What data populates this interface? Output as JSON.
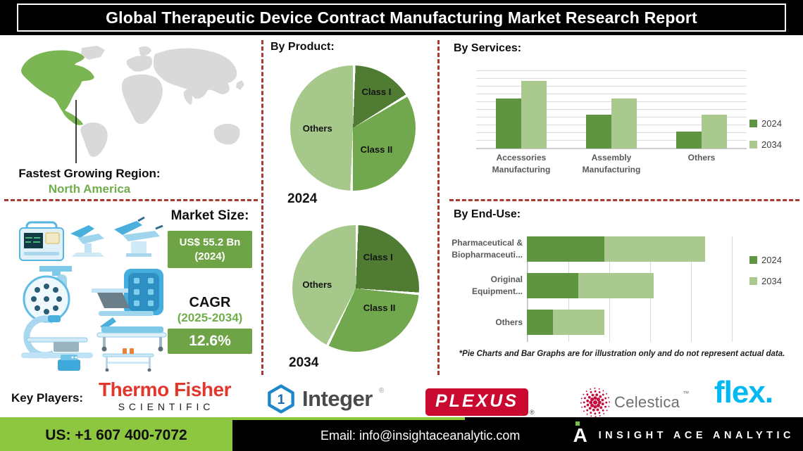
{
  "title": "Global Therapeutic Device Contract Manufacturing Market Research Report",
  "region": {
    "heading": "Fastest Growing Region:",
    "value": "North America"
  },
  "market": {
    "heading": "Market Size:",
    "size_value": "US$ 55.2 Bn",
    "size_year": "(2024)",
    "cagr_label": "CAGR",
    "cagr_period": "(2025-2034)",
    "cagr_value": "12.6%"
  },
  "sections": {
    "by_product": "By Product:",
    "by_services": "By Services:",
    "by_end_use": "By End-Use:"
  },
  "chart_data": [
    {
      "type": "pie",
      "name": "by-product-2024",
      "year": "2024",
      "labels": [
        "Class I",
        "Class II",
        "Others"
      ],
      "values": [
        16,
        34,
        50
      ],
      "colors": [
        "#4f7b33",
        "#71a84e",
        "#a6c98b"
      ],
      "note": "illustrative only"
    },
    {
      "type": "pie",
      "name": "by-product-2034",
      "year": "2034",
      "labels": [
        "Class I",
        "Class II",
        "Others"
      ],
      "values": [
        26,
        31,
        43
      ],
      "colors": [
        "#4f7b33",
        "#71a84e",
        "#a6c98b"
      ],
      "note": "illustrative only"
    },
    {
      "type": "bar",
      "name": "by-services",
      "categories": [
        "Accessories Manufacturing",
        "Assembly Manufacturing",
        "Others"
      ],
      "series": [
        {
          "name": "2024",
          "color": "#5f9441",
          "values": [
            63,
            43,
            21
          ]
        },
        {
          "name": "2034",
          "color": "#a9c98e",
          "values": [
            86,
            63,
            43
          ]
        }
      ],
      "ylim": [
        0,
        100
      ],
      "grid": true,
      "legend_position": "right",
      "note": "illustrative only"
    },
    {
      "type": "bar-horizontal-stacked",
      "name": "by-end-use",
      "categories": [
        "Pharmaceutical & Biopharmaceuti...",
        "Original Equipment...",
        "Others"
      ],
      "series": [
        {
          "name": "2024",
          "color": "#5f9441",
          "values": [
            36,
            24,
            12
          ]
        },
        {
          "name": "2034",
          "color": "#a9c98e",
          "values": [
            47,
            35,
            24
          ]
        }
      ],
      "xlim": [
        0,
        100
      ],
      "grid": true,
      "legend_position": "right",
      "note": "illustrative only"
    }
  ],
  "disclaimer": "*Pie Charts and Bar Graphs are for illustration only and do not represent actual data.",
  "key_players": {
    "heading": "Key Players:",
    "thermo_fisher": {
      "line1": "Thermo Fisher",
      "line2": "SCIENTIFIC"
    },
    "integer": {
      "label": "Integer",
      "mark": "1",
      "reg": "®"
    },
    "plexus": {
      "label": "PLEXUS",
      "reg": "®"
    },
    "celestica": {
      "label": "Celestica",
      "tm": "™"
    },
    "flex": {
      "label": "flex."
    }
  },
  "footer": {
    "phone": "US: +1 607 400-7072",
    "email": "Email: info@insightaceanalytic.com",
    "brand": "INSIGHT ACE ANALYTIC"
  },
  "colors": {
    "dark_green_slice": "#4f7b33",
    "mid_green_slice": "#71a84e",
    "light_green": "#a9c98e",
    "bar_green_2024": "#5f9441",
    "accent_green_box": "#6fa446",
    "map_green": "#7cb654",
    "red_dashed": "#a93a31",
    "footer_green": "#8dc63f",
    "thermo_red": "#e1372c",
    "plexus_red": "#c9092f",
    "celestica_red": "#c40d3c",
    "flex_blue": "#00b9f2",
    "integer_blue": "#1e87c9"
  }
}
